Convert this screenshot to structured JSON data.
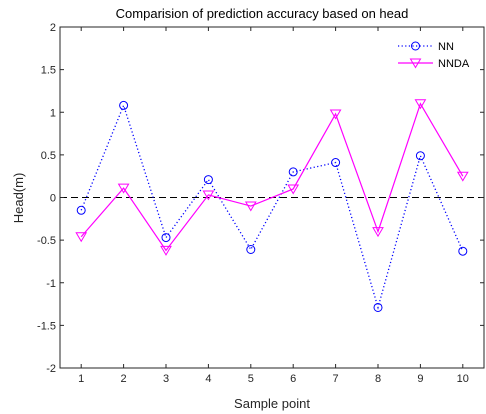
{
  "chart_data": {
    "type": "line",
    "title": "Comparision of prediction accuracy based on head",
    "xlabel": "Sample point",
    "ylabel": "Head(m)",
    "x": [
      1,
      2,
      3,
      4,
      5,
      6,
      7,
      8,
      9,
      10
    ],
    "xlim": [
      0.5,
      10.5
    ],
    "ylim": [
      -2,
      2
    ],
    "xticks": [
      "1",
      "2",
      "3",
      "4",
      "5",
      "6",
      "7",
      "8",
      "9",
      "10"
    ],
    "yticks": [
      "-2",
      "-1.5",
      "-1",
      "-0.5",
      "0",
      "0.5",
      "1",
      "1.5",
      "2"
    ],
    "ytick_values": [
      -2,
      -1.5,
      -1,
      -0.5,
      0,
      0.5,
      1,
      1.5,
      2
    ],
    "reference_line": {
      "y": 0,
      "style": "dashed",
      "color": "#000000"
    },
    "legend_position": "top-right",
    "grid": false,
    "series": [
      {
        "name": "NN",
        "values": [
          -0.15,
          1.08,
          -0.47,
          0.21,
          -0.61,
          0.3,
          0.41,
          -1.29,
          0.49,
          -0.63
        ],
        "color": "#0000ff",
        "line_style": "dotted",
        "marker": "circle"
      },
      {
        "name": "NNDA",
        "values": [
          -0.46,
          0.11,
          -0.62,
          0.03,
          -0.1,
          0.1,
          0.98,
          -0.4,
          1.1,
          0.25
        ],
        "color": "#ff00ff",
        "line_style": "solid",
        "marker": "triangle-down"
      }
    ]
  }
}
